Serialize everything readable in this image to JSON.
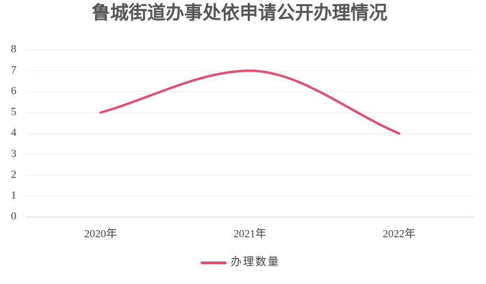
{
  "chart_data": {
    "type": "line",
    "title": "鲁城街道办事处依申请公开办理情况",
    "categories": [
      "2020年",
      "2021年",
      "2022年"
    ],
    "series": [
      {
        "name": "办理数量",
        "color": "#e44d72",
        "values": [
          5,
          7,
          4
        ]
      }
    ],
    "ylim": [
      0,
      8
    ],
    "yticks": [
      0,
      1,
      2,
      3,
      4,
      5,
      6,
      7,
      8
    ],
    "grid": true,
    "smooth": true,
    "legend": "bottom"
  }
}
